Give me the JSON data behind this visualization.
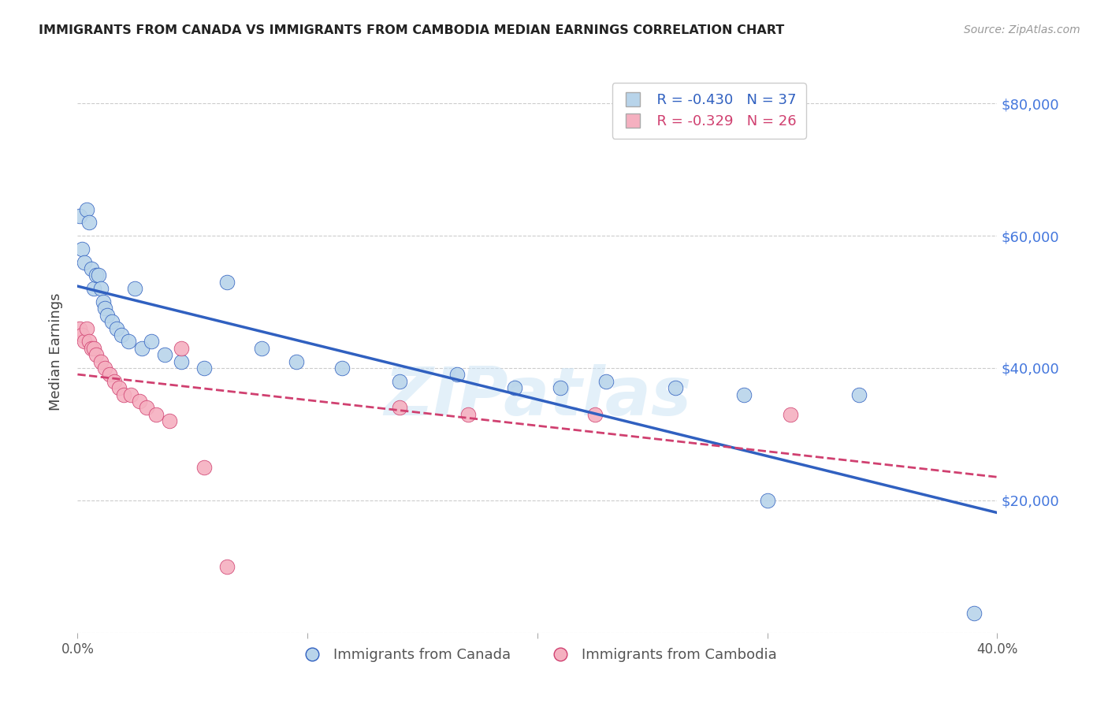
{
  "title": "IMMIGRANTS FROM CANADA VS IMMIGRANTS FROM CAMBODIA MEDIAN EARNINGS CORRELATION CHART",
  "source": "Source: ZipAtlas.com",
  "ylabel": "Median Earnings",
  "yticks": [
    0,
    20000,
    40000,
    60000,
    80000
  ],
  "ytick_labels": [
    "",
    "$20,000",
    "$40,000",
    "$60,000",
    "$80,000"
  ],
  "xmin": 0.0,
  "xmax": 0.4,
  "ymin": 0,
  "ymax": 85000,
  "canada_R": -0.43,
  "canada_N": 37,
  "cambodia_R": -0.329,
  "cambodia_N": 26,
  "canada_color": "#b8d4ea",
  "canada_line_color": "#3060c0",
  "cambodia_color": "#f5b0c0",
  "cambodia_line_color": "#d04070",
  "watermark_text": "ZIPatlas",
  "canada_x": [
    0.001,
    0.002,
    0.003,
    0.004,
    0.005,
    0.006,
    0.007,
    0.008,
    0.009,
    0.01,
    0.011,
    0.012,
    0.013,
    0.015,
    0.017,
    0.019,
    0.022,
    0.025,
    0.028,
    0.032,
    0.038,
    0.045,
    0.055,
    0.065,
    0.08,
    0.095,
    0.115,
    0.14,
    0.165,
    0.19,
    0.21,
    0.23,
    0.26,
    0.29,
    0.3,
    0.34,
    0.39
  ],
  "canada_y": [
    63000,
    58000,
    56000,
    64000,
    62000,
    55000,
    52000,
    54000,
    54000,
    52000,
    50000,
    49000,
    48000,
    47000,
    46000,
    45000,
    44000,
    52000,
    43000,
    44000,
    42000,
    41000,
    40000,
    53000,
    43000,
    41000,
    40000,
    38000,
    39000,
    37000,
    37000,
    38000,
    37000,
    36000,
    20000,
    36000,
    3000
  ],
  "cambodia_x": [
    0.001,
    0.002,
    0.003,
    0.004,
    0.005,
    0.006,
    0.007,
    0.008,
    0.01,
    0.012,
    0.014,
    0.016,
    0.018,
    0.02,
    0.023,
    0.027,
    0.03,
    0.034,
    0.04,
    0.045,
    0.055,
    0.065,
    0.14,
    0.17,
    0.225,
    0.31
  ],
  "cambodia_y": [
    46000,
    45000,
    44000,
    46000,
    44000,
    43000,
    43000,
    42000,
    41000,
    40000,
    39000,
    38000,
    37000,
    36000,
    36000,
    35000,
    34000,
    33000,
    32000,
    43000,
    25000,
    10000,
    34000,
    33000,
    33000,
    33000
  ],
  "xtick_positions": [
    0.0,
    0.4
  ],
  "xtick_labels": [
    "0.0%",
    "40.0%"
  ]
}
